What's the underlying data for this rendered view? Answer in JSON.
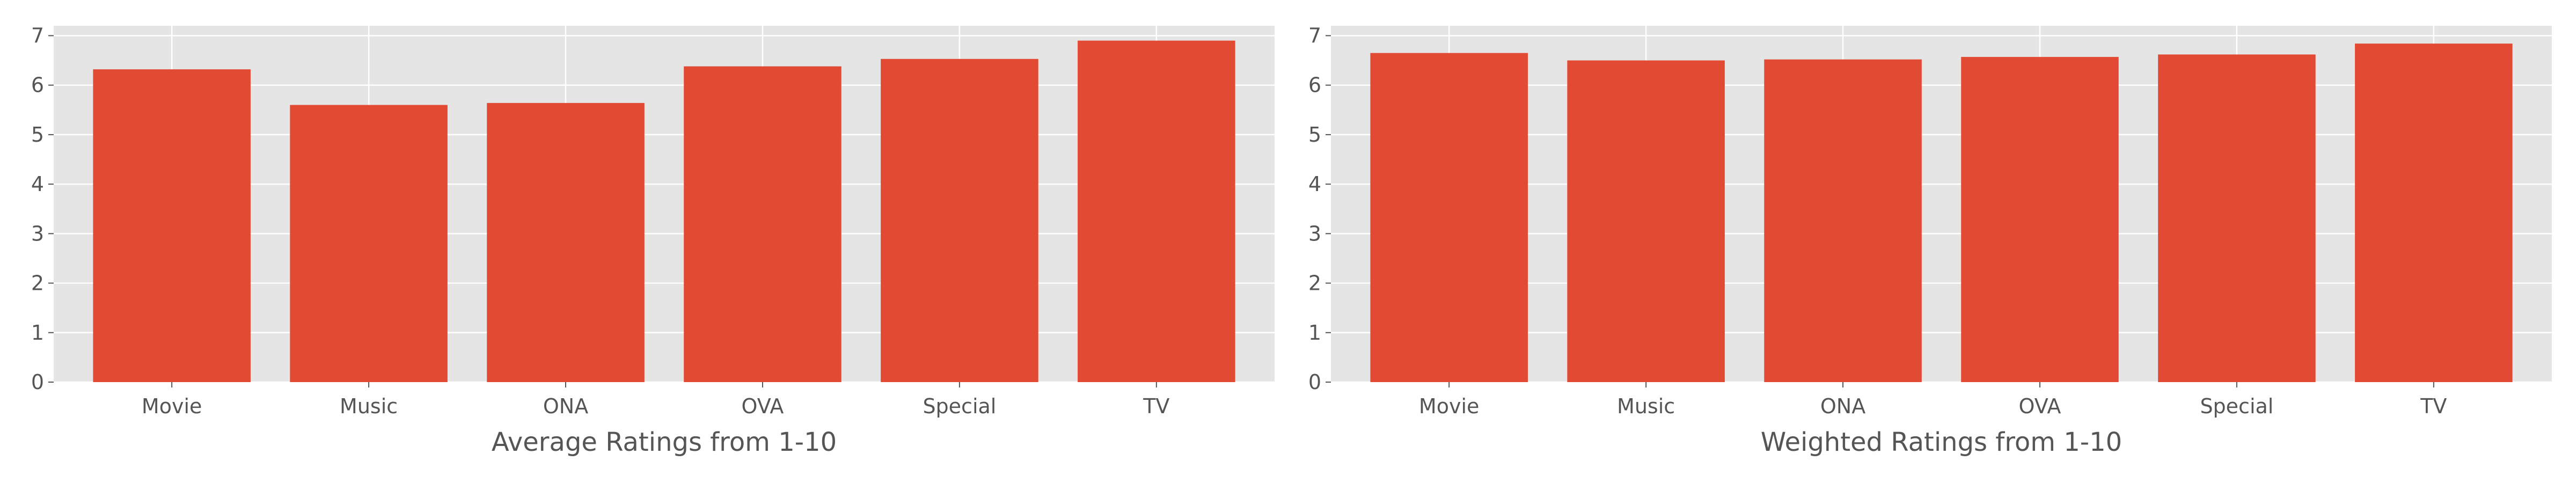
{
  "chart_data": [
    {
      "type": "bar",
      "categories": [
        "Movie",
        "Music",
        "ONA",
        "OVA",
        "Special",
        "TV"
      ],
      "values": [
        6.32,
        5.6,
        5.64,
        6.38,
        6.53,
        6.9
      ],
      "title": "",
      "xlabel": "Average Ratings from 1-10",
      "ylabel": "",
      "ylim": [
        0,
        7.2
      ],
      "yticks": [
        0,
        1,
        2,
        3,
        4,
        5,
        6,
        7
      ],
      "bar_color": "#E24A33",
      "plot_background": "#E5E5E5",
      "grid": true
    },
    {
      "type": "bar",
      "categories": [
        "Movie",
        "Music",
        "ONA",
        "OVA",
        "Special",
        "TV"
      ],
      "values": [
        6.65,
        6.5,
        6.52,
        6.57,
        6.62,
        6.84
      ],
      "title": "",
      "xlabel": "Weighted Ratings from 1-10",
      "ylabel": "",
      "ylim": [
        0,
        7.2
      ],
      "yticks": [
        0,
        1,
        2,
        3,
        4,
        5,
        6,
        7
      ],
      "bar_color": "#E24A33",
      "plot_background": "#E5E5E5",
      "grid": true
    }
  ]
}
